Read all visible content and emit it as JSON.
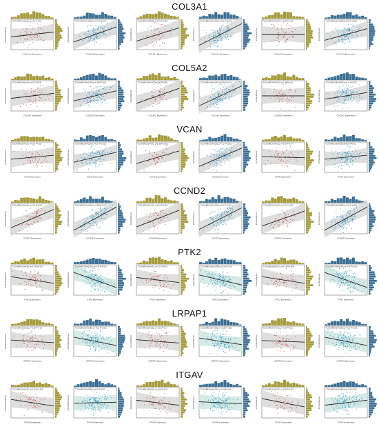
{
  "genes": [
    {
      "name": "COL3A1",
      "panels": [
        {
          "stat": "TCGA-BRCA(N=191) ρ=0.12 P=0.10",
          "xlabel": "COL3A1 Expression",
          "ylabel": "ESTIMATEScore",
          "points": "red",
          "slope": 0.15
        },
        {
          "stat": "TCGA-BRCA(N=1095) ρ=0.53 P<0.001",
          "xlabel": "COL3A1 Expression",
          "ylabel": "ESTIMATEScore",
          "points": "blue",
          "slope": 0.45
        },
        {
          "stat": "TCGA-BRCA(N=191) ρ=0.41 P<0.001",
          "xlabel": "COL3A1 Expression",
          "ylabel": "StromalScore",
          "points": "red",
          "slope": 0.4
        },
        {
          "stat": "TCGA-BRCA(N=1095) ρ=0.66 P<0.001",
          "xlabel": "COL3A1 Expression",
          "ylabel": "StromalScore",
          "points": "blue",
          "slope": 0.65
        },
        {
          "stat": "TCGA-BRCA(N=191) ρ=-0.02 P=0.82",
          "xlabel": "COL3A1 Expression",
          "ylabel": "ImmuneScore",
          "points": "red",
          "slope": 0.0
        },
        {
          "stat": "TCGA-BRCA(N=1095) ρ=0.29 P<0.001",
          "xlabel": "COL3A1 Expression",
          "ylabel": "ImmuneScore",
          "points": "blue",
          "slope": 0.35
        }
      ]
    },
    {
      "name": "COL5A2",
      "panels": [
        {
          "stat": "TCGA-BRCA(N=191) ρ=0.07 P=0.35",
          "xlabel": "COL5A2 Expression",
          "ylabel": "ESTIMATEScore",
          "points": "red",
          "slope": 0.15
        },
        {
          "stat": "TCGA-BRCA(N=1095) ρ=0.25 P<0.001",
          "xlabel": "COL5A2 Expression",
          "ylabel": "ESTIMATEScore",
          "points": "blue",
          "slope": 0.3
        },
        {
          "stat": "TCGA-BRCA(N=191) ρ=0.36 P<0.001",
          "xlabel": "COL5A2 Expression",
          "ylabel": "StromalScore",
          "points": "red",
          "slope": 0.45
        },
        {
          "stat": "TCGA-BRCA(N=1095) ρ=0.58 P<0.001",
          "xlabel": "COL5A2 Expression",
          "ylabel": "StromalScore",
          "points": "blue",
          "slope": 0.6
        },
        {
          "stat": "TCGA-BRCA(N=191) ρ=-0.03 P=0.67",
          "xlabel": "COL5A2 Expression",
          "ylabel": "ImmuneScore",
          "points": "red",
          "slope": 0.0
        },
        {
          "stat": "TCGA-BRCA(N=1095) ρ=0.11 P<0.001",
          "xlabel": "COL5A2 Expression",
          "ylabel": "ImmuneScore",
          "points": "blue",
          "slope": 0.2
        }
      ]
    },
    {
      "name": "VCAN",
      "panels": [
        {
          "stat": "TCGA-BRCA(N=191) ρ=0.10 P=0.18",
          "xlabel": "VCAN Expression",
          "ylabel": "ESTIMATEScore",
          "points": "red",
          "slope": 0.12
        },
        {
          "stat": "TCGA-BRCA(N=1095) ρ=0.27 P<0.001",
          "xlabel": "VCAN Expression",
          "ylabel": "ESTIMATEScore",
          "points": "blue",
          "slope": 0.3
        },
        {
          "stat": "TCGA-BRCA(N=191) ρ=0.34 P<0.001",
          "xlabel": "VCAN Expression",
          "ylabel": "StromalScore",
          "points": "red",
          "slope": 0.38
        },
        {
          "stat": "TCGA-BRCA(N=1095) ρ=0.52 P<0.001",
          "xlabel": "VCAN Expression",
          "ylabel": "StromalScore",
          "points": "blue",
          "slope": 0.55
        },
        {
          "stat": "TCGA-BRCA(N=191) ρ=-0.05 P=0.47",
          "xlabel": "VCAN Expression",
          "ylabel": "ImmuneScore",
          "points": "red",
          "slope": -0.03
        },
        {
          "stat": "TCGA-BRCA(N=1095) ρ=0.08 P=0.01",
          "xlabel": "VCAN Expression",
          "ylabel": "ImmuneScore",
          "points": "blue",
          "slope": 0.12
        }
      ]
    },
    {
      "name": "CCND2",
      "panels": [
        {
          "stat": "TCGA-BRCA(N=191) ρ=0.56 P<0.001",
          "xlabel": "CCND2 Expression",
          "ylabel": "ESTIMATEScore",
          "points": "red",
          "slope": 0.55
        },
        {
          "stat": "TCGA-BRCA(N=1095) ρ=0.68 P<0.001",
          "xlabel": "CCND2 Expression",
          "ylabel": "ESTIMATEScore",
          "points": "blue",
          "slope": 0.7
        },
        {
          "stat": "TCGA-BRCA(N=191) ρ=0.51 P<0.001",
          "xlabel": "CCND2 Expression",
          "ylabel": "StromalScore",
          "points": "red",
          "slope": 0.5
        },
        {
          "stat": "TCGA-BRCA(N=1095) ρ=0.64 P<0.001",
          "xlabel": "CCND2 Expression",
          "ylabel": "StromalScore",
          "points": "blue",
          "slope": 0.65
        },
        {
          "stat": "TCGA-BRCA(N=191) ρ=0.47 P<0.001",
          "xlabel": "CCND2 Expression",
          "ylabel": "ImmuneScore",
          "points": "red",
          "slope": 0.45
        },
        {
          "stat": "TCGA-BRCA(N=1095) ρ=0.61 P<0.001",
          "xlabel": "CCND2 Expression",
          "ylabel": "ImmuneScore",
          "points": "blue",
          "slope": 0.7
        }
      ]
    },
    {
      "name": "PTK2",
      "panels": [
        {
          "stat": "TCGA-BRCA(N=191) ρ=-0.23 P=0.001",
          "xlabel": "PTK2 Expression",
          "ylabel": "ESTIMATEScore",
          "points": "red",
          "slope": -0.2
        },
        {
          "stat": "TCGA-BRCA(N=1095) ρ=-0.38 P<0.001",
          "xlabel": "PTK2 Expression",
          "ylabel": "ESTIMATEScore",
          "points": "blue",
          "slope": -0.45
        },
        {
          "stat": "TCGA-BRCA(N=191) ρ=-0.17 P=0.02",
          "xlabel": "PTK2 Expression",
          "ylabel": "StromalScore",
          "points": "red",
          "slope": -0.15
        },
        {
          "stat": "TCGA-BRCA(N=1095) ρ=-0.26 P<0.001",
          "xlabel": "PTK2 Expression",
          "ylabel": "StromalScore",
          "points": "blue",
          "slope": -0.3
        },
        {
          "stat": "TCGA-BRCA(N=191) ρ=-0.21 P=0.004",
          "xlabel": "PTK2 Expression",
          "ylabel": "ImmuneScore",
          "points": "red",
          "slope": -0.2
        },
        {
          "stat": "TCGA-BRCA(N=1095) ρ=-0.36 P<0.001",
          "xlabel": "PTK2 Expression",
          "ylabel": "ImmuneScore",
          "points": "blue",
          "slope": -0.45
        }
      ]
    },
    {
      "name": "LRPAP1",
      "panels": [
        {
          "stat": "TCGA-BRCA(N=191) ρ=-0.08 P=0.29",
          "xlabel": "LRPAP1 Expression",
          "ylabel": "ESTIMATEScore",
          "points": "red",
          "slope": -0.08
        },
        {
          "stat": "TCGA-BRCA(N=1095) ρ=-0.21 P<0.001",
          "xlabel": "LRPAP1 Expression",
          "ylabel": "ESTIMATEScore",
          "points": "blue",
          "slope": -0.25
        },
        {
          "stat": "TCGA-BRCA(N=191) ρ=-0.10 P=0.17",
          "xlabel": "LRPAP1 Expression",
          "ylabel": "StromalScore",
          "points": "red",
          "slope": -0.1
        },
        {
          "stat": "TCGA-BRCA(N=1095) ρ=-0.15 P<0.001",
          "xlabel": "LRPAP1 Expression",
          "ylabel": "StromalScore",
          "points": "blue",
          "slope": -0.2
        },
        {
          "stat": "TCGA-BRCA(N=191) ρ=-0.06 P=0.41",
          "xlabel": "LRPAP1 Expression",
          "ylabel": "ImmuneScore",
          "points": "red",
          "slope": -0.05
        },
        {
          "stat": "TCGA-BRCA(N=1095) ρ=-0.20 P<0.001",
          "xlabel": "LRPAP1 Expression",
          "ylabel": "ImmuneScore",
          "points": "blue",
          "slope": -0.25
        }
      ]
    },
    {
      "name": "ITGAV",
      "panels": [
        {
          "stat": "TCGA-BRCA(N=191) ρ=-0.22 P=0.002",
          "xlabel": "ITGAV Expression",
          "ylabel": "ESTIMATEScore",
          "points": "red",
          "slope": -0.2
        },
        {
          "stat": "TCGA-BRCA(N=1095) ρ=0.02 P=0.49",
          "xlabel": "ITGAV Expression",
          "ylabel": "ESTIMATEScore",
          "points": "blue",
          "slope": 0.03
        },
        {
          "stat": "TCGA-BRCA(N=191) ρ=-0.16 P=0.03",
          "xlabel": "ITGAV Expression",
          "ylabel": "StromalScore",
          "points": "red",
          "slope": -0.15
        },
        {
          "stat": "TCGA-BRCA(N=1095) ρ=-0.06 P=0.04",
          "xlabel": "ITGAV Expression",
          "ylabel": "StromalScore",
          "points": "blue",
          "slope": -0.06
        },
        {
          "stat": "TCGA-BRCA(N=191) ρ=-0.25 P<0.001",
          "xlabel": "ITGAV Expression",
          "ylabel": "ImmuneScore",
          "points": "red",
          "slope": -0.25
        },
        {
          "stat": "TCGA-BRCA(N=1095) ρ=0.10 P<0.001",
          "xlabel": "ITGAV Expression",
          "ylabel": "ImmuneScore",
          "points": "blue",
          "slope": 0.15
        }
      ]
    }
  ],
  "chart_data": {
    "type": "scatter",
    "layout": "7 gene rows × 6 scatter panels with marginal histograms",
    "colors": {
      "red_points": "#c0504d",
      "blue_points": "#3e9bc4",
      "hist_olive": "#a59b3c",
      "hist_blue": "#3d6f94",
      "band": "#d9d9d9",
      "band_teal": "#cfe6e2",
      "fit_line": "#222222"
    }
  }
}
